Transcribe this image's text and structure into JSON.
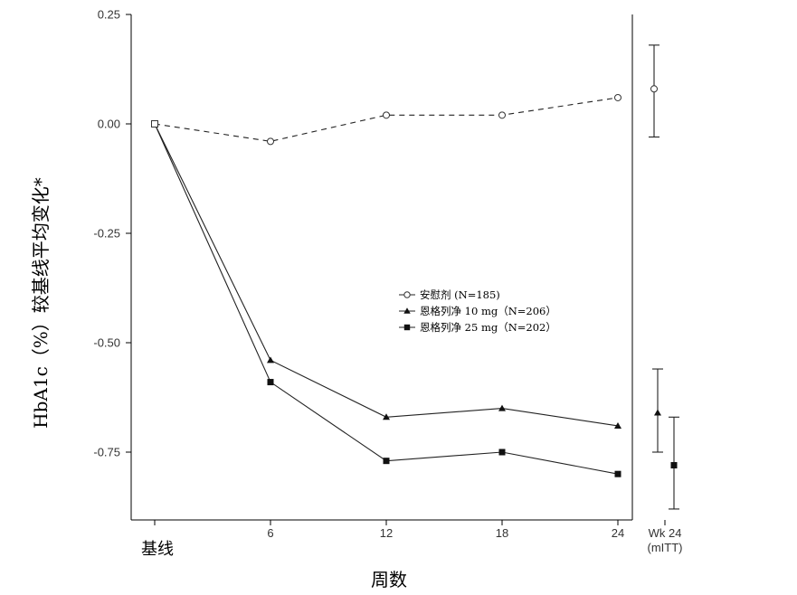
{
  "chart_data": {
    "type": "line",
    "xlabel": "周数",
    "ylabel": "HbA1c（%）较基线平均变化*",
    "x": [
      0,
      6,
      12,
      18,
      24
    ],
    "x_tick_labels": [
      "基线",
      "6",
      "12",
      "18",
      "24"
    ],
    "ylim": [
      -0.875,
      0.25
    ],
    "y_ticks": [
      0.25,
      0.0,
      -0.25,
      -0.5,
      -0.75
    ],
    "y_tick_labels": [
      "0.25",
      "0.00",
      "-0.25",
      "-0.50",
      "-0.75"
    ],
    "series": [
      {
        "name": "安慰剂 (N=185)",
        "marker": "open-circle",
        "line": "dashed",
        "values": [
          0.0,
          -0.04,
          0.02,
          0.02,
          0.06
        ]
      },
      {
        "name": "恩格列净  10 mg（N=206）",
        "marker": "filled-triangle",
        "line": "solid",
        "values": [
          0.0,
          -0.54,
          -0.67,
          -0.65,
          -0.69
        ]
      },
      {
        "name": "恩格列净  25 mg（N=202）",
        "marker": "filled-square",
        "line": "solid",
        "values": [
          0.0,
          -0.59,
          -0.77,
          -0.75,
          -0.8
        ]
      }
    ],
    "endpoint_panel": {
      "label_line1": "Wk 24",
      "label_line2": "(mITT)",
      "estimates": [
        {
          "series": "安慰剂 (N=185)",
          "mean": 0.08,
          "lower": -0.03,
          "upper": 0.18
        },
        {
          "series": "恩格列净  10 mg（N=206）",
          "mean": -0.66,
          "lower": -0.75,
          "upper": -0.56
        },
        {
          "series": "恩格列净  25 mg（N=202）",
          "mean": -0.78,
          "lower": -0.88,
          "upper": -0.67
        }
      ]
    },
    "legend_position": "center-right",
    "grid": false
  }
}
